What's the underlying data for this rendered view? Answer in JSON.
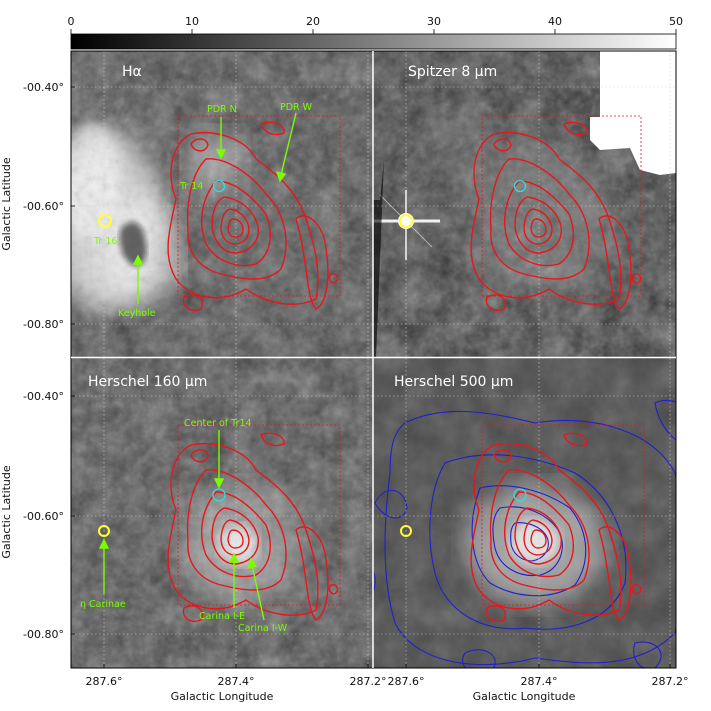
{
  "colorbar": {
    "ticks": [
      "0",
      "10",
      "20",
      "30",
      "40",
      "50"
    ],
    "values": [
      0,
      10,
      20,
      30,
      40,
      50
    ],
    "range": [
      0,
      50
    ]
  },
  "axes": {
    "y_label": "Galactic Latitude",
    "x_label": "Galactic Longitude",
    "y_ticks": [
      "-00.40°",
      "-00.60°",
      "-00.80°"
    ],
    "x_ticks": [
      "287.6°",
      "287.4°",
      "287.2°"
    ]
  },
  "panels": [
    {
      "title": "Hα",
      "annotations": [
        "PDR N",
        "PDR W",
        "Tr 14",
        "Tr 16",
        "Keyhole"
      ]
    },
    {
      "title": "Spitzer 8 μm",
      "annotations": []
    },
    {
      "title": "Herschel 160 μm",
      "annotations": [
        "Center of Tr14",
        "η Carinae",
        "Carina I-E",
        "Carina I-W"
      ]
    },
    {
      "title": "Herschel 500 μm",
      "annotations": []
    }
  ],
  "colors": {
    "annotation": "#7cfc00",
    "red_contour": "#e8161b",
    "blue_contour": "#2020cc",
    "marker_yellow": "#ffff33",
    "marker_cyan": "#33dddd"
  }
}
